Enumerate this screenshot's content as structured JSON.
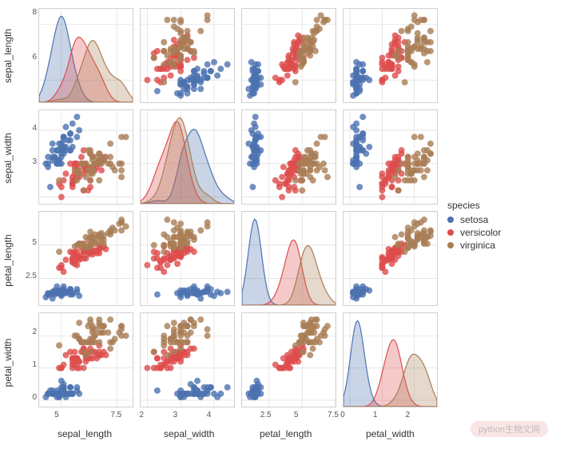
{
  "chart": {
    "type": "pairplot",
    "vars": [
      "sepal_length",
      "sepal_width",
      "petal_length",
      "petal_width"
    ],
    "ranges": {
      "sepal_length": [
        4.0,
        8.2
      ],
      "sepal_width": [
        1.8,
        4.6
      ],
      "petal_length": [
        0.5,
        7.5
      ],
      "petal_width": [
        -0.2,
        2.7
      ]
    },
    "ticks": {
      "sepal_length": [
        5.0,
        7.5
      ],
      "sepal_width": [
        2,
        3,
        4
      ],
      "petal_length": [
        2.5,
        5.0,
        7.5
      ],
      "petal_width": [
        0,
        1,
        2
      ]
    },
    "y_ticks_diag": {
      "sepal_length": [
        6,
        8
      ],
      "sepal_width": [
        3,
        4
      ],
      "petal_length": [
        2.5,
        5.0
      ],
      "petal_width": [
        0,
        1,
        2
      ]
    },
    "legend_title": "species",
    "species": [
      {
        "name": "setosa",
        "color": "#4c72b0"
      },
      {
        "name": "versicolor",
        "color": "#dd4c4c"
      },
      {
        "name": "virginica",
        "color": "#a97d55"
      }
    ],
    "background_color": "#ffffff",
    "grid_color": "#d8d8d8",
    "border_color": "#b0b0b0",
    "marker_size": 4,
    "marker_opacity": 0.8,
    "kde_fill_opacity": 0.3,
    "label_fontsize": 12,
    "tick_fontsize": 10,
    "data": {
      "setosa": {
        "sepal_length": [
          5.1,
          4.9,
          4.7,
          4.6,
          5.0,
          5.4,
          4.6,
          5.0,
          4.4,
          4.9,
          5.4,
          4.8,
          4.8,
          4.3,
          5.8,
          5.7,
          5.4,
          5.1,
          5.7,
          5.1,
          5.4,
          5.1,
          4.6,
          5.1,
          4.8,
          5.0,
          5.0,
          5.2,
          5.2,
          4.7,
          4.8,
          5.4,
          5.2,
          5.5,
          4.9,
          5.0,
          5.5,
          4.9,
          4.4,
          5.1,
          5.0,
          4.5,
          4.4,
          5.0,
          5.1,
          4.8,
          5.1,
          4.6,
          5.3,
          5.0
        ],
        "sepal_width": [
          3.5,
          3.0,
          3.2,
          3.1,
          3.6,
          3.9,
          3.4,
          3.4,
          2.9,
          3.1,
          3.7,
          3.4,
          3.0,
          3.0,
          4.0,
          4.4,
          3.9,
          3.5,
          3.8,
          3.8,
          3.4,
          3.7,
          3.6,
          3.3,
          3.4,
          3.0,
          3.4,
          3.5,
          3.4,
          3.2,
          3.1,
          3.4,
          4.1,
          4.2,
          3.1,
          3.2,
          3.5,
          3.6,
          3.0,
          3.4,
          3.5,
          2.3,
          3.2,
          3.5,
          3.8,
          3.0,
          3.8,
          3.2,
          3.7,
          3.3
        ],
        "petal_length": [
          1.4,
          1.4,
          1.3,
          1.5,
          1.4,
          1.7,
          1.4,
          1.5,
          1.4,
          1.5,
          1.5,
          1.6,
          1.4,
          1.1,
          1.2,
          1.5,
          1.3,
          1.4,
          1.7,
          1.5,
          1.7,
          1.5,
          1.0,
          1.7,
          1.9,
          1.6,
          1.6,
          1.5,
          1.4,
          1.6,
          1.6,
          1.5,
          1.5,
          1.4,
          1.5,
          1.2,
          1.3,
          1.4,
          1.3,
          1.5,
          1.3,
          1.3,
          1.3,
          1.6,
          1.9,
          1.4,
          1.6,
          1.4,
          1.5,
          1.4
        ],
        "petal_width": [
          0.2,
          0.2,
          0.2,
          0.2,
          0.2,
          0.4,
          0.3,
          0.2,
          0.2,
          0.1,
          0.2,
          0.2,
          0.1,
          0.1,
          0.2,
          0.4,
          0.4,
          0.3,
          0.3,
          0.3,
          0.2,
          0.4,
          0.2,
          0.5,
          0.2,
          0.2,
          0.4,
          0.2,
          0.2,
          0.2,
          0.2,
          0.4,
          0.1,
          0.2,
          0.2,
          0.2,
          0.2,
          0.1,
          0.2,
          0.2,
          0.3,
          0.3,
          0.2,
          0.6,
          0.4,
          0.3,
          0.2,
          0.2,
          0.2,
          0.2
        ]
      },
      "versicolor": {
        "sepal_length": [
          7.0,
          6.4,
          6.9,
          5.5,
          6.5,
          5.7,
          6.3,
          4.9,
          6.6,
          5.2,
          5.0,
          5.9,
          6.0,
          6.1,
          5.6,
          6.7,
          5.6,
          5.8,
          6.2,
          5.6,
          5.9,
          6.1,
          6.3,
          6.1,
          6.4,
          6.6,
          6.8,
          6.7,
          6.0,
          5.7,
          5.5,
          5.5,
          5.8,
          6.0,
          5.4,
          6.0,
          6.7,
          6.3,
          5.6,
          5.5,
          5.5,
          6.1,
          5.8,
          5.0,
          5.6,
          5.7,
          5.7,
          6.2,
          5.1,
          5.7
        ],
        "sepal_width": [
          3.2,
          3.2,
          3.1,
          2.3,
          2.8,
          2.8,
          3.3,
          2.4,
          2.9,
          2.7,
          2.0,
          3.0,
          2.2,
          2.9,
          2.9,
          3.1,
          3.0,
          2.7,
          2.2,
          2.5,
          3.2,
          2.8,
          2.5,
          2.8,
          2.9,
          3.0,
          2.8,
          3.0,
          2.9,
          2.6,
          2.4,
          2.4,
          2.7,
          2.7,
          3.0,
          3.4,
          3.1,
          2.3,
          3.0,
          2.5,
          2.6,
          3.0,
          2.6,
          2.3,
          2.7,
          3.0,
          2.9,
          2.9,
          2.5,
          2.8
        ],
        "petal_length": [
          4.7,
          4.5,
          4.9,
          4.0,
          4.6,
          4.5,
          4.7,
          3.3,
          4.6,
          3.9,
          3.5,
          4.2,
          4.0,
          4.7,
          3.6,
          4.4,
          4.5,
          4.1,
          4.5,
          3.9,
          4.8,
          4.0,
          4.9,
          4.7,
          4.3,
          4.4,
          4.8,
          5.0,
          4.5,
          3.5,
          3.8,
          3.7,
          3.9,
          5.1,
          4.5,
          4.5,
          4.7,
          4.4,
          4.1,
          4.0,
          4.4,
          4.6,
          4.0,
          3.3,
          4.2,
          4.2,
          4.2,
          4.3,
          3.0,
          4.1
        ],
        "petal_width": [
          1.4,
          1.5,
          1.5,
          1.3,
          1.5,
          1.3,
          1.6,
          1.0,
          1.3,
          1.4,
          1.0,
          1.5,
          1.0,
          1.4,
          1.3,
          1.4,
          1.5,
          1.0,
          1.5,
          1.1,
          1.8,
          1.3,
          1.5,
          1.2,
          1.3,
          1.4,
          1.4,
          1.7,
          1.5,
          1.0,
          1.1,
          1.0,
          1.2,
          1.6,
          1.5,
          1.6,
          1.5,
          1.3,
          1.3,
          1.3,
          1.2,
          1.4,
          1.2,
          1.0,
          1.3,
          1.2,
          1.3,
          1.3,
          1.1,
          1.3
        ]
      },
      "virginica": {
        "sepal_length": [
          6.3,
          5.8,
          7.1,
          6.3,
          6.5,
          7.6,
          4.9,
          7.3,
          6.7,
          7.2,
          6.5,
          6.4,
          6.8,
          5.7,
          5.8,
          6.4,
          6.5,
          7.7,
          7.7,
          6.0,
          6.9,
          5.6,
          7.7,
          6.3,
          6.7,
          7.2,
          6.2,
          6.1,
          6.4,
          7.2,
          7.4,
          7.9,
          6.4,
          6.3,
          6.1,
          7.7,
          6.3,
          6.4,
          6.0,
          6.9,
          6.7,
          6.9,
          5.8,
          6.8,
          6.7,
          6.7,
          6.3,
          6.5,
          6.2,
          5.9
        ],
        "sepal_width": [
          3.3,
          2.7,
          3.0,
          2.9,
          3.0,
          3.0,
          2.5,
          2.9,
          2.5,
          3.6,
          3.2,
          2.7,
          3.0,
          2.5,
          2.8,
          3.2,
          3.0,
          3.8,
          2.6,
          2.2,
          3.2,
          2.8,
          2.8,
          2.7,
          3.3,
          3.2,
          2.8,
          3.0,
          2.8,
          3.0,
          2.8,
          3.8,
          2.8,
          2.8,
          2.6,
          3.0,
          3.4,
          3.1,
          3.0,
          3.1,
          3.1,
          3.1,
          2.7,
          3.2,
          3.3,
          3.0,
          2.5,
          3.0,
          3.4,
          3.0
        ],
        "petal_length": [
          6.0,
          5.1,
          5.9,
          5.6,
          5.8,
          6.6,
          4.5,
          6.3,
          5.8,
          6.1,
          5.1,
          5.3,
          5.5,
          5.0,
          5.1,
          5.3,
          5.5,
          6.7,
          6.9,
          5.0,
          5.7,
          4.9,
          6.7,
          4.9,
          5.7,
          6.0,
          4.8,
          4.9,
          5.6,
          5.8,
          6.1,
          6.4,
          5.6,
          5.1,
          5.6,
          6.1,
          5.6,
          5.5,
          4.8,
          5.4,
          5.6,
          5.1,
          5.1,
          5.9,
          5.7,
          5.2,
          5.0,
          5.2,
          5.4,
          5.1
        ],
        "petal_width": [
          2.5,
          1.9,
          2.1,
          1.8,
          2.2,
          2.1,
          1.7,
          1.8,
          1.8,
          2.5,
          2.0,
          1.9,
          2.1,
          2.0,
          2.4,
          2.3,
          1.8,
          2.2,
          2.3,
          1.5,
          2.3,
          2.0,
          2.0,
          1.8,
          2.1,
          1.8,
          1.8,
          1.8,
          2.1,
          1.6,
          1.9,
          2.0,
          2.2,
          1.5,
          1.4,
          2.3,
          2.4,
          1.8,
          1.8,
          2.1,
          2.4,
          2.3,
          1.9,
          2.3,
          2.5,
          2.3,
          1.9,
          2.0,
          2.3,
          1.8
        ]
      }
    },
    "watermark": "python生物文网"
  }
}
